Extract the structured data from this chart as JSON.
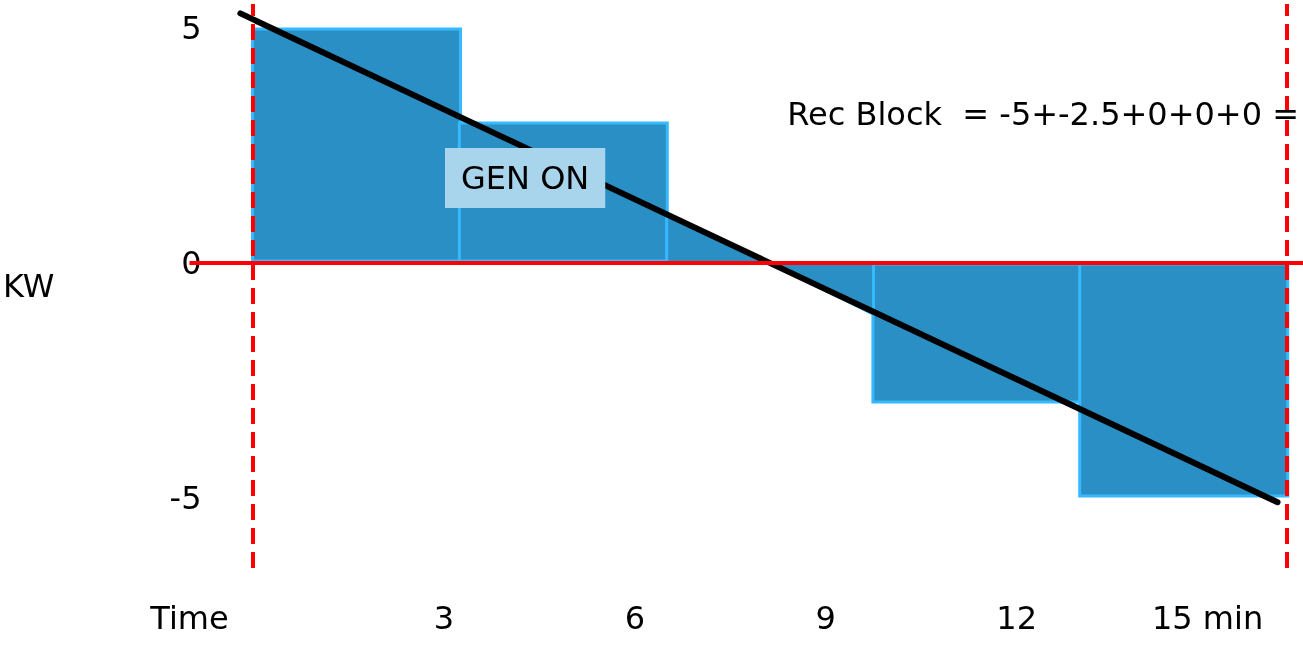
{
  "chart_data": {
    "type": "bar",
    "ylabel": "KW",
    "x": [
      1.625,
      4.875,
      8.125,
      11.375,
      14.625
    ],
    "xlim": [
      -1,
      16.5
    ],
    "xticks": [
      {
        "value": -1,
        "label": "Time"
      },
      3,
      6,
      9,
      12,
      {
        "value": 15,
        "label": "15 min"
      }
    ],
    "ylim": [
      -6.5,
      5.5
    ],
    "yticks": [
      -5,
      0,
      5
    ],
    "grid": false,
    "series": [
      {
        "color": "#2a8fc4",
        "values": [
          5,
          3,
          null,
          -3,
          -5
        ]
      },
      {
        "type": "area",
        "color": "#2a8fc4",
        "x": [
          6.5,
          6.5,
          8.1,
          9.75,
          9.75
        ],
        "values": [
          0,
          1.0,
          0,
          -1.1,
          0
        ]
      },
      {
        "type": "line",
        "color": "#000000",
        "x": [
          -0.2,
          16.1
        ],
        "values": [
          5.3,
          -5.1
        ]
      }
    ],
    "ref_lines": [
      {
        "axis": "y",
        "value": 0,
        "color": "#ff0000",
        "line_style": "solid"
      },
      {
        "axis": "x",
        "value": 0,
        "color": "#ff0000",
        "line_style": "dashed"
      },
      {
        "axis": "x",
        "value": 16.25,
        "color": "#ff0000",
        "line_style": "dashed"
      }
    ],
    "annotations": [
      "GEN ON",
      "Rec Block  = -5+-2.5+0+0+0 ="
    ]
  }
}
